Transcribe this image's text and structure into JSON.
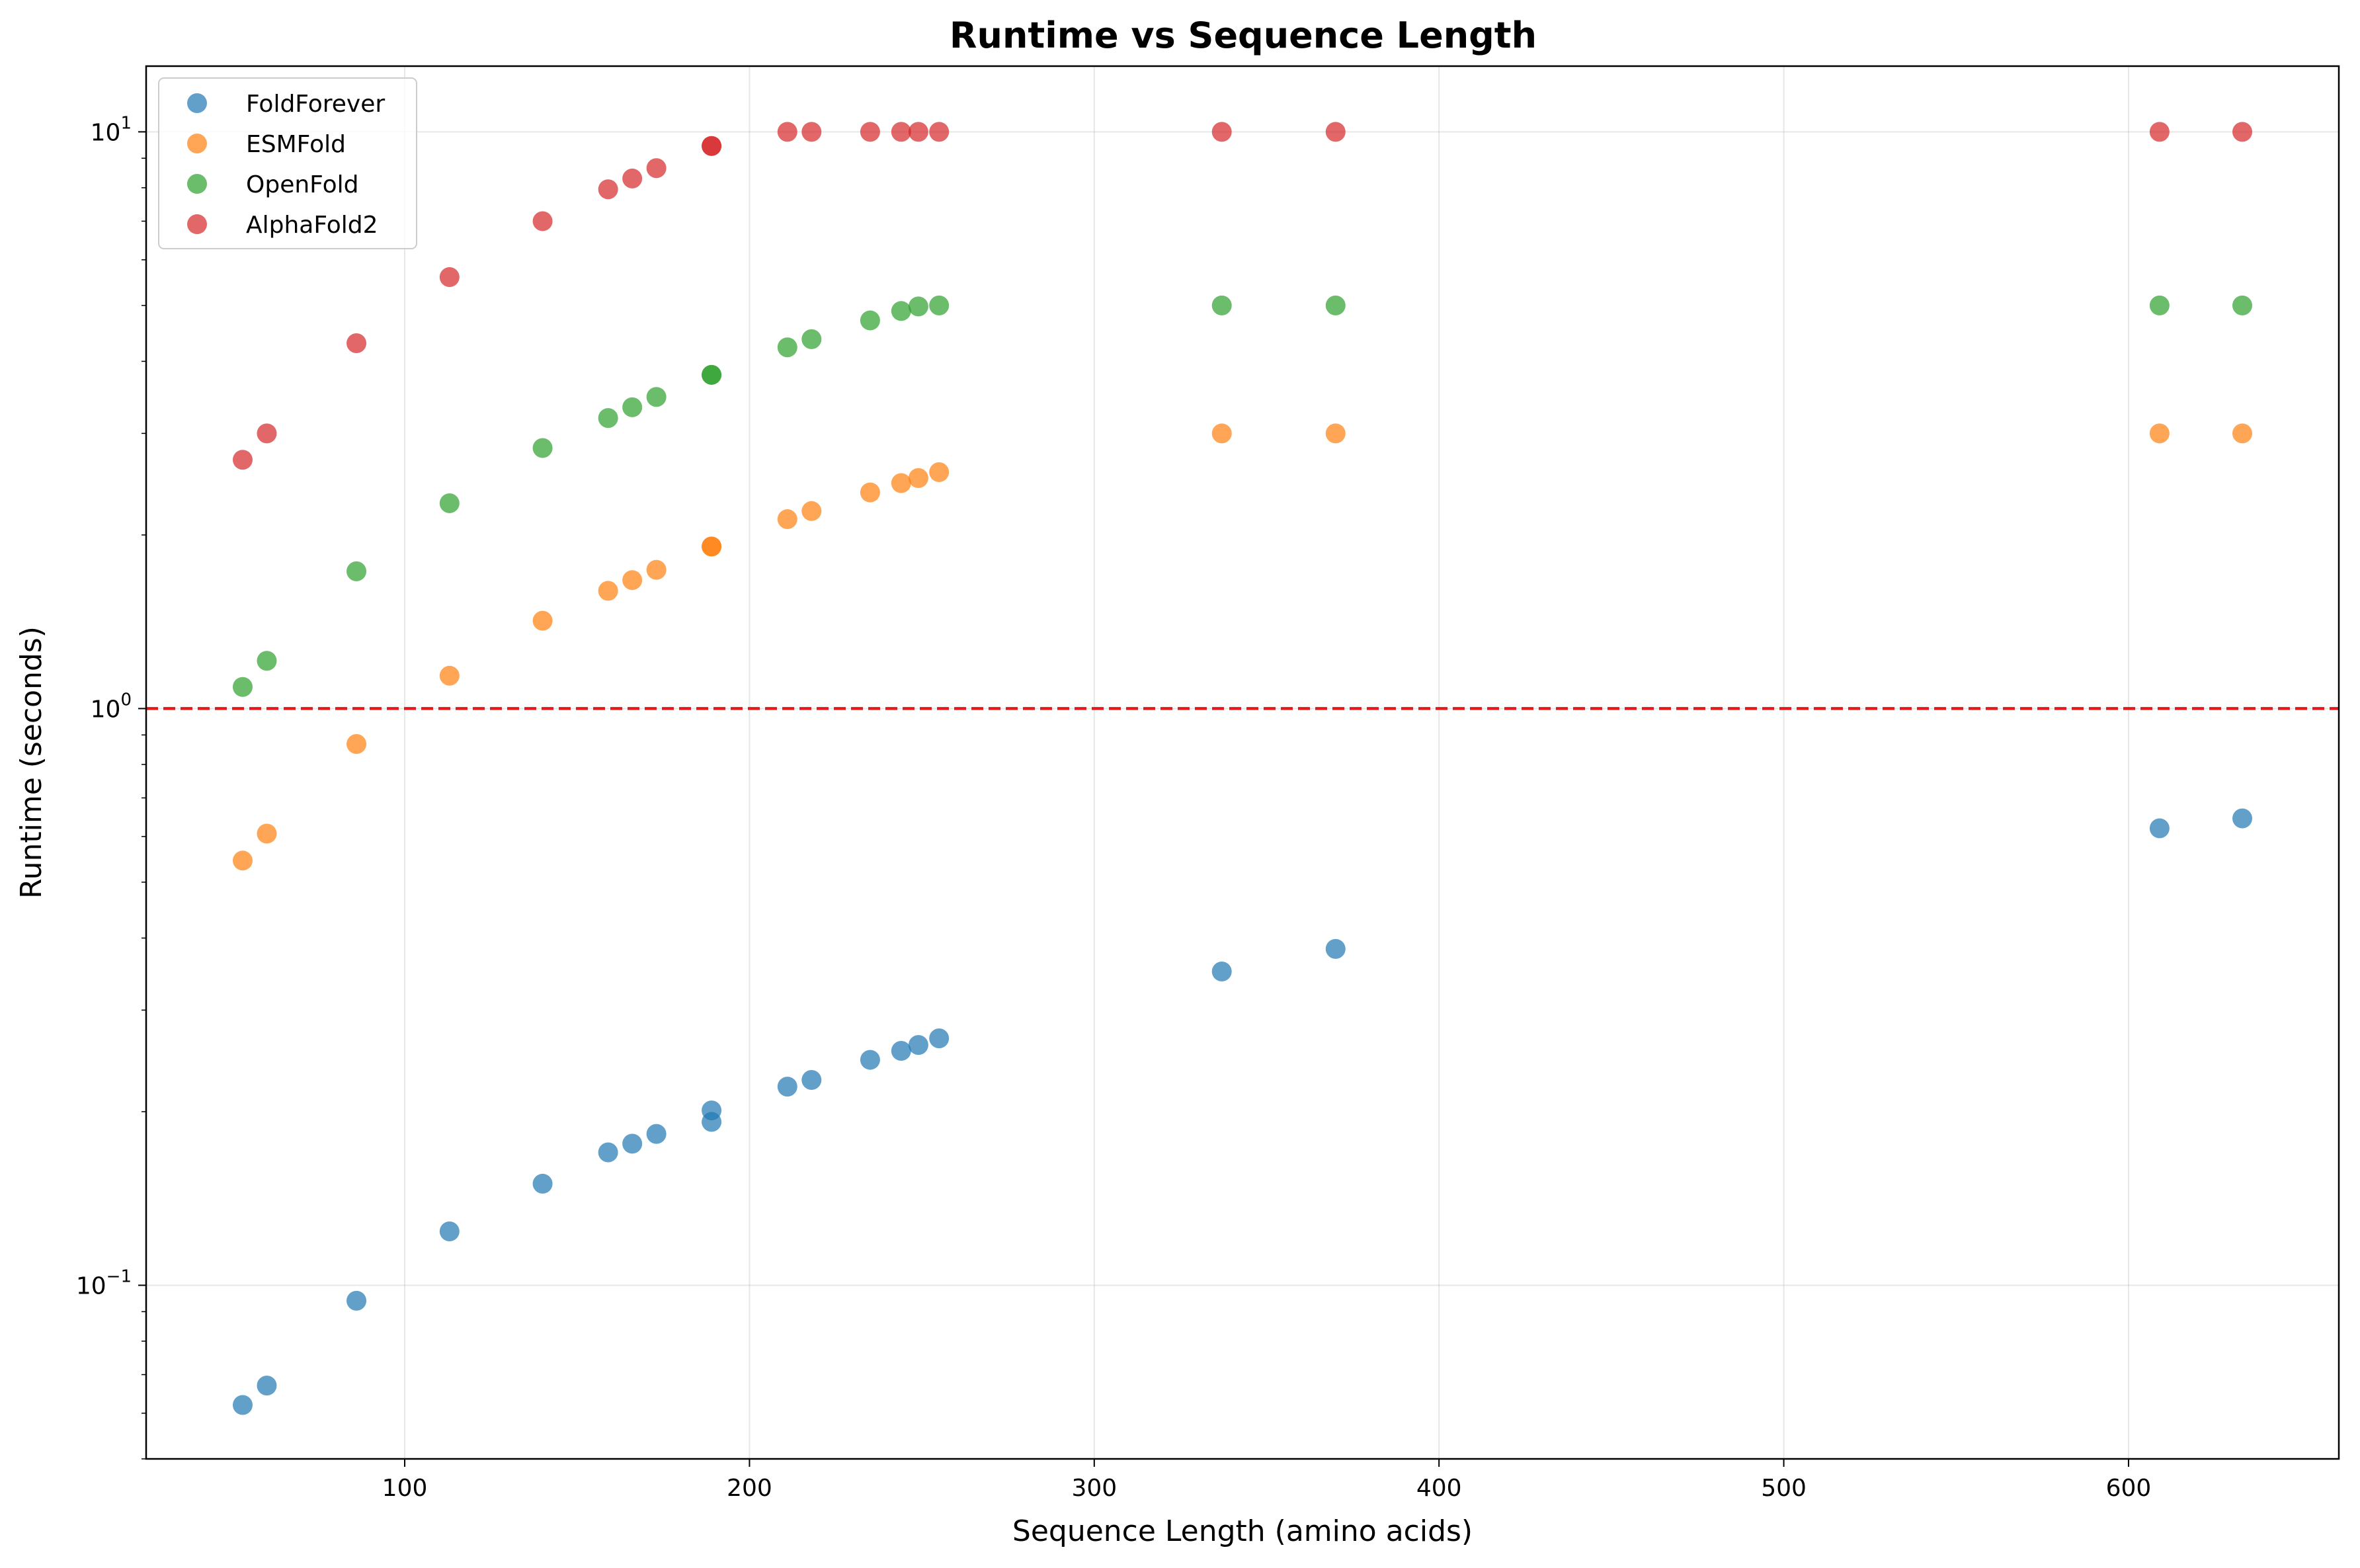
{
  "chart_data": {
    "type": "scatter",
    "title": "Runtime vs Sequence Length",
    "xlabel": "Sequence Length (amino acids)",
    "ylabel": "Runtime (seconds)",
    "xlim": [
      25,
      661
    ],
    "ylim": [
      0.05,
      13
    ],
    "yscale": "log",
    "grid": true,
    "legend_position": "top-left",
    "xticks": [
      100,
      200,
      300,
      400,
      500,
      600
    ],
    "yticks": [
      {
        "value": 0.1,
        "base": "10",
        "exp": "−1"
      },
      {
        "value": 1,
        "base": "10",
        "exp": "0"
      },
      {
        "value": 10,
        "base": "10",
        "exp": "1"
      }
    ],
    "reference_line": {
      "y": 1.0,
      "color": "#e31a1c",
      "style": "dashed"
    },
    "series": [
      {
        "name": "FoldForever",
        "color": "#1f77b4",
        "points": [
          [
            53,
            0.062
          ],
          [
            60,
            0.067
          ],
          [
            86,
            0.094
          ],
          [
            113,
            0.124
          ],
          [
            140,
            0.15
          ],
          [
            159,
            0.17
          ],
          [
            166,
            0.176
          ],
          [
            173,
            0.183
          ],
          [
            189,
            0.192
          ],
          [
            189,
            0.201
          ],
          [
            211,
            0.221
          ],
          [
            218,
            0.227
          ],
          [
            235,
            0.246
          ],
          [
            244,
            0.255
          ],
          [
            249,
            0.261
          ],
          [
            255,
            0.268
          ],
          [
            337,
            0.35
          ],
          [
            370,
            0.383
          ],
          [
            609,
            0.62
          ],
          [
            633,
            0.645
          ]
        ]
      },
      {
        "name": "ESMFold",
        "color": "#ff7f0e",
        "points": [
          [
            53,
            0.545
          ],
          [
            60,
            0.607
          ],
          [
            86,
            0.868
          ],
          [
            113,
            1.14
          ],
          [
            140,
            1.42
          ],
          [
            159,
            1.6
          ],
          [
            166,
            1.67
          ],
          [
            173,
            1.74
          ],
          [
            189,
            1.91
          ],
          [
            189,
            1.91
          ],
          [
            211,
            2.13
          ],
          [
            218,
            2.2
          ],
          [
            235,
            2.37
          ],
          [
            244,
            2.46
          ],
          [
            249,
            2.51
          ],
          [
            255,
            2.57
          ],
          [
            337,
            3.0
          ],
          [
            370,
            3.0
          ],
          [
            609,
            3.0
          ],
          [
            633,
            3.0
          ]
        ]
      },
      {
        "name": "OpenFold",
        "color": "#2ca02c",
        "points": [
          [
            53,
            1.09
          ],
          [
            60,
            1.21
          ],
          [
            86,
            1.73
          ],
          [
            113,
            2.27
          ],
          [
            140,
            2.83
          ],
          [
            159,
            3.19
          ],
          [
            166,
            3.33
          ],
          [
            173,
            3.47
          ],
          [
            189,
            3.79
          ],
          [
            189,
            3.79
          ],
          [
            211,
            4.23
          ],
          [
            218,
            4.37
          ],
          [
            235,
            4.71
          ],
          [
            244,
            4.89
          ],
          [
            249,
            4.98
          ],
          [
            255,
            5.0
          ],
          [
            337,
            5.0
          ],
          [
            370,
            5.0
          ],
          [
            609,
            5.0
          ],
          [
            633,
            5.0
          ]
        ]
      },
      {
        "name": "AlphaFold2",
        "color": "#d62728",
        "points": [
          [
            53,
            2.7
          ],
          [
            60,
            3.0
          ],
          [
            86,
            4.3
          ],
          [
            113,
            5.6
          ],
          [
            140,
            7.0
          ],
          [
            159,
            7.95
          ],
          [
            166,
            8.3
          ],
          [
            173,
            8.65
          ],
          [
            189,
            9.45
          ],
          [
            189,
            9.45
          ],
          [
            211,
            10.0
          ],
          [
            218,
            10.0
          ],
          [
            235,
            10.0
          ],
          [
            244,
            10.0
          ],
          [
            249,
            10.0
          ],
          [
            255,
            10.0
          ],
          [
            337,
            10.0
          ],
          [
            370,
            10.0
          ],
          [
            609,
            10.0
          ],
          [
            633,
            10.0
          ]
        ]
      }
    ]
  }
}
